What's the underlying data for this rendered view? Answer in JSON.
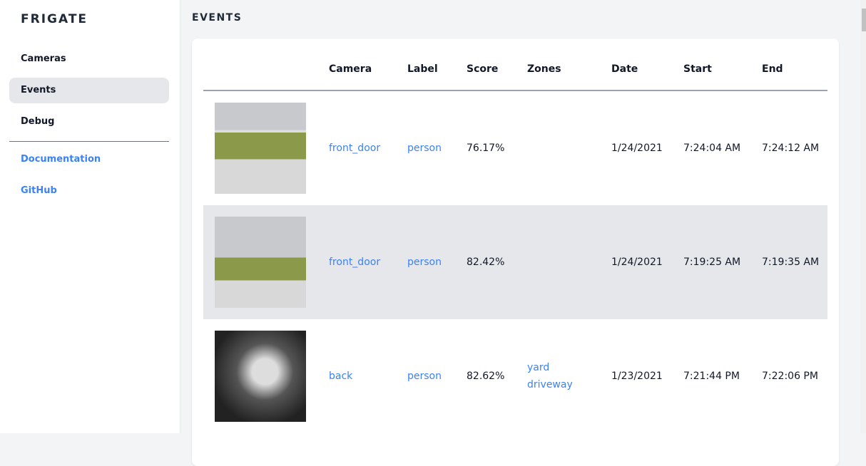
{
  "sidebar": {
    "brand": "FRIGATE",
    "items": [
      {
        "label": "Cameras"
      },
      {
        "label": "Events",
        "active": true
      },
      {
        "label": "Debug"
      }
    ],
    "links": [
      {
        "label": "Documentation"
      },
      {
        "label": "GitHub"
      }
    ]
  },
  "page_title": "EVENTS",
  "table": {
    "headers": [
      "",
      "Camera",
      "Label",
      "Score",
      "Zones",
      "Date",
      "Start",
      "End"
    ],
    "rows": [
      {
        "camera": "front_door",
        "label": "person",
        "score": "76.17%",
        "zones": [
          "",
          ""
        ],
        "date": "1/24/2021",
        "start": "7:24:04 AM",
        "end": "7:24:12 AM"
      },
      {
        "camera": "front_door",
        "label": "person",
        "score": "82.42%",
        "zones": [
          "",
          ""
        ],
        "date": "1/24/2021",
        "start": "7:19:25 AM",
        "end": "7:19:35 AM"
      },
      {
        "camera": "back",
        "label": "person",
        "score": "82.62%",
        "zones": [
          "yard",
          "driveway"
        ],
        "date": "1/23/2021",
        "start": "7:21:44 PM",
        "end": "7:22:06 PM"
      }
    ]
  },
  "colors": {
    "accent": "#3b82f6",
    "active_bg": "#e5e7eb",
    "page_bg": "#f3f4f6"
  }
}
